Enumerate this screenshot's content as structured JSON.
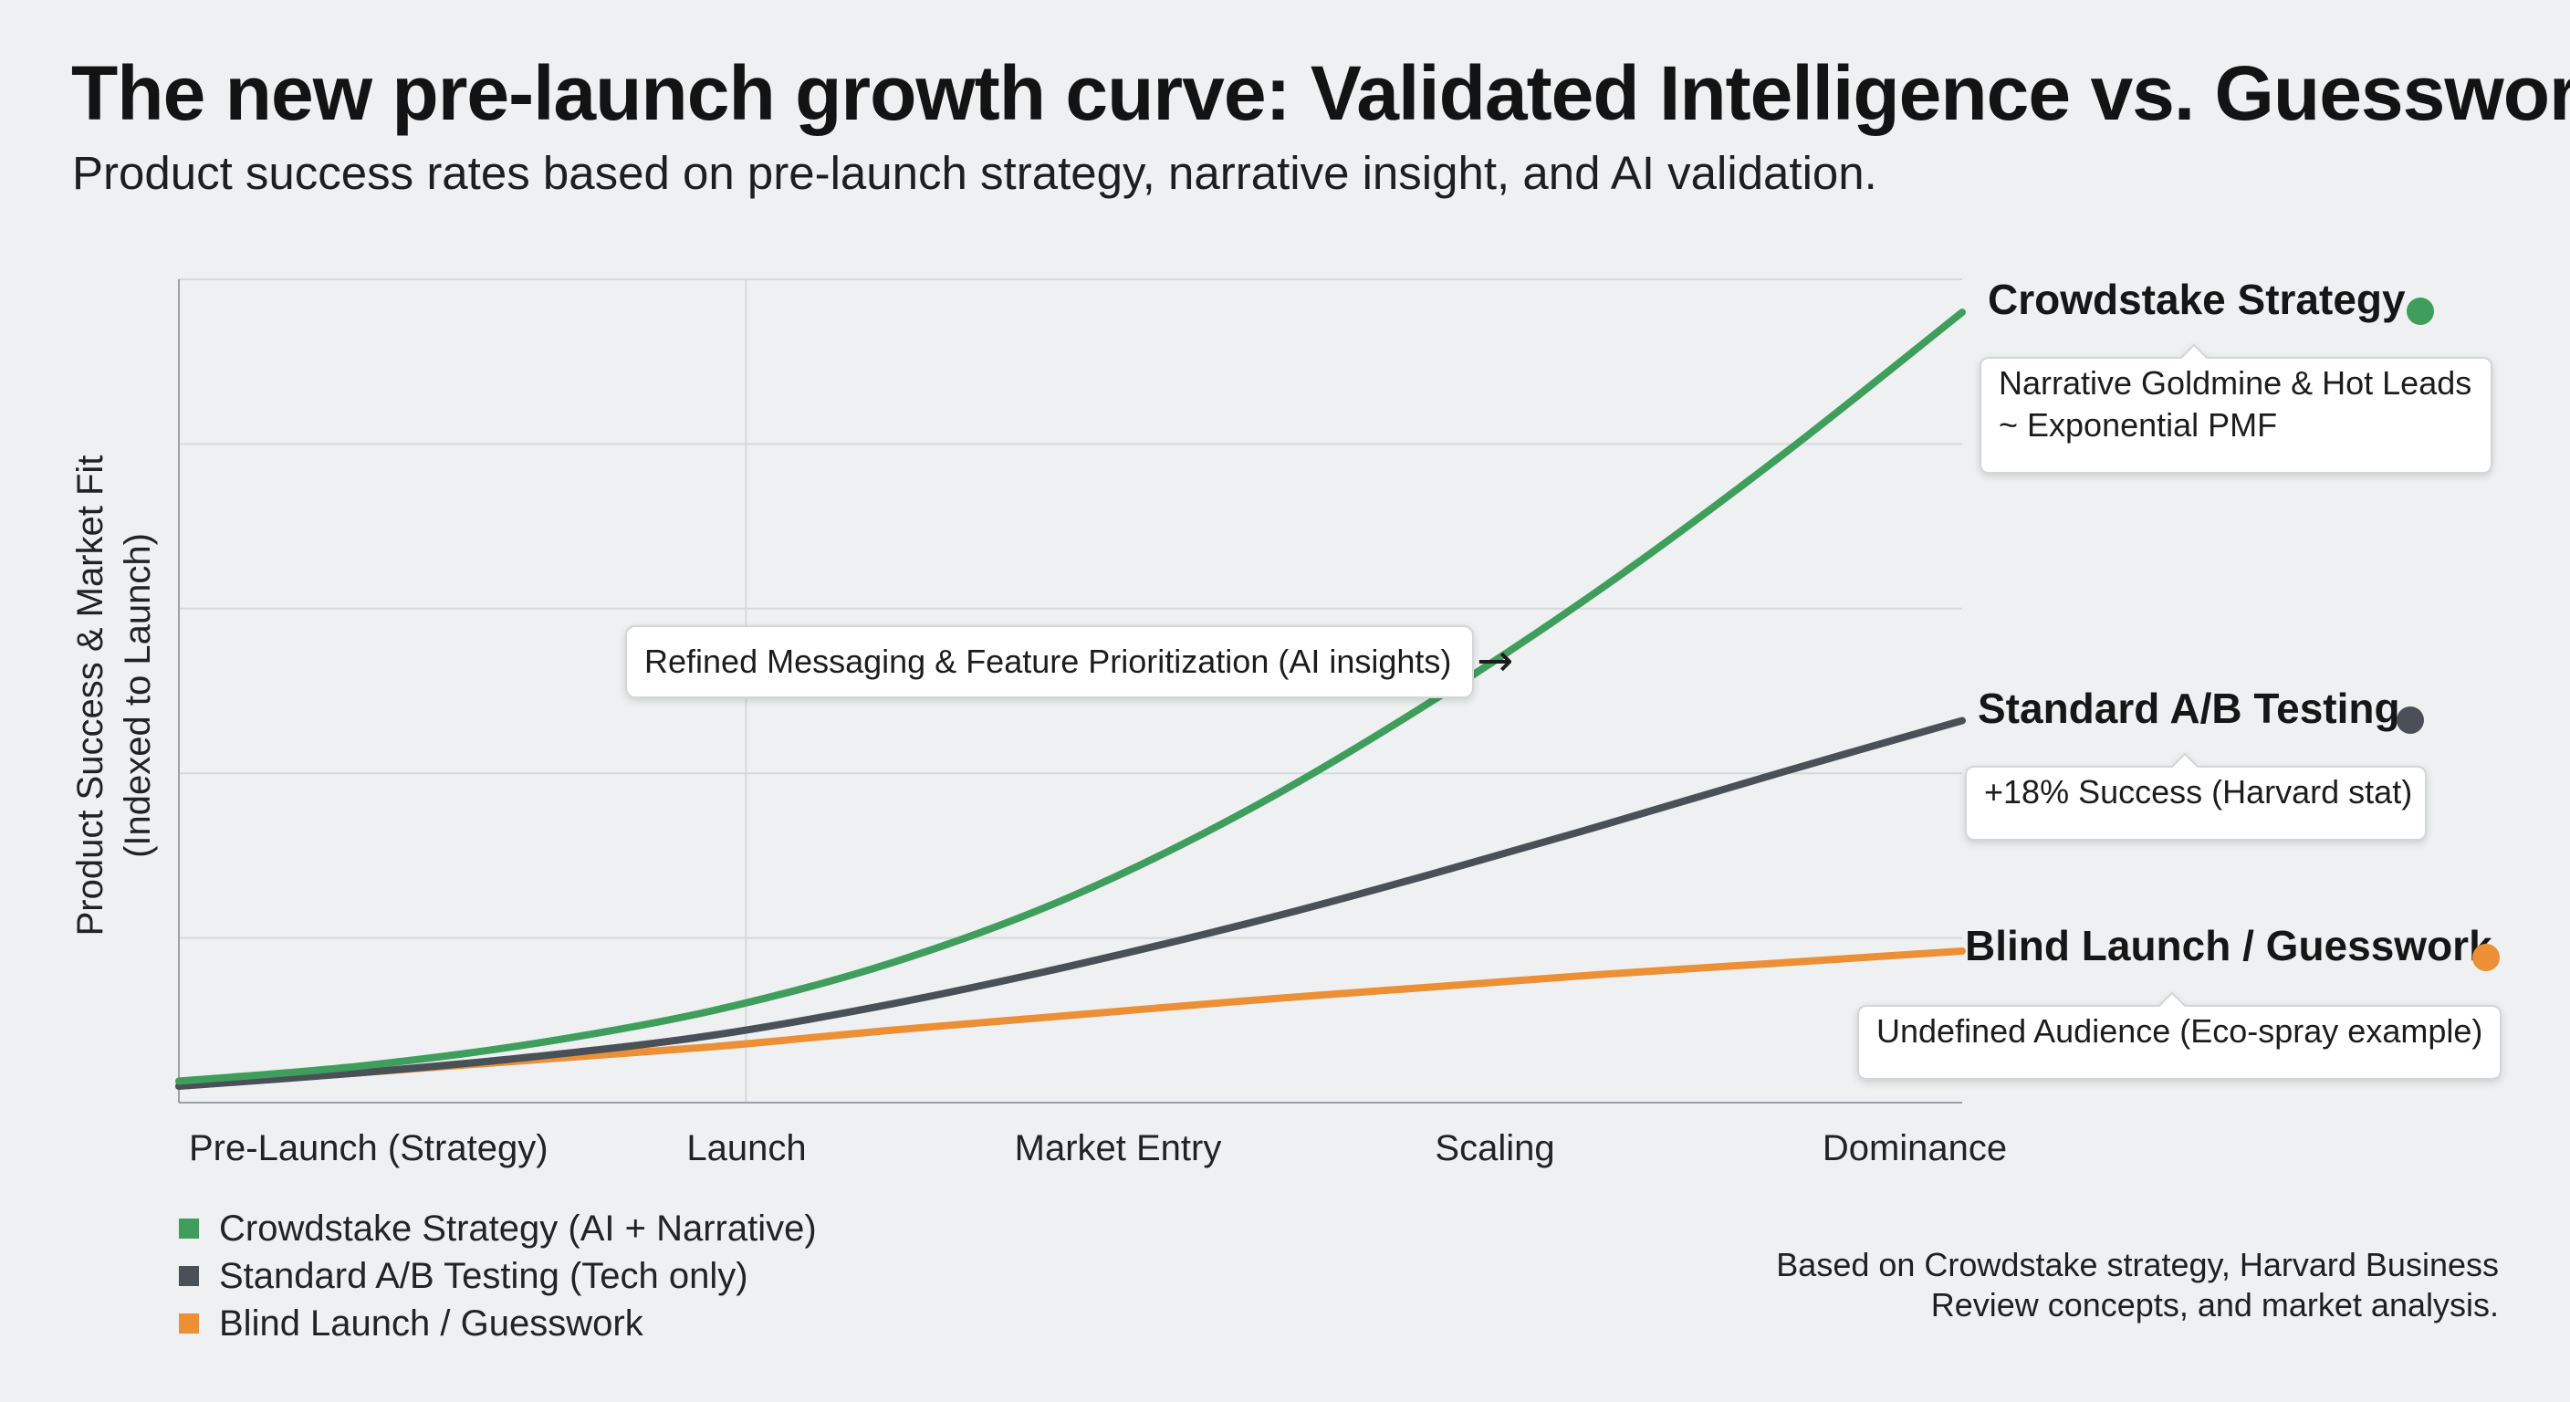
{
  "header": {
    "title": "The new pre-launch growth curve: Validated Intelligence vs. Guesswork.",
    "subtitle": "Product success rates based on pre-launch strategy, narrative insight, and AI validation."
  },
  "colors": {
    "crowdstake": "#3f9e5c",
    "standard": "#4a5058",
    "blind": "#ec8f35",
    "grid": "#d6d9dc",
    "axis": "#9aa0a6"
  },
  "chart_data": {
    "type": "line",
    "title": "The new pre-launch growth curve: Validated Intelligence vs. Guesswork.",
    "ylabel": "Product Success & Market Fit (Indexed to Launch)",
    "ylabel_lines": [
      "Product Success & Market Fit",
      "(Indexed to Launch)"
    ],
    "xlabel": "",
    "categories": [
      "Pre-Launch (Strategy)",
      "Launch",
      "Market Entry",
      "Scaling",
      "Dominance"
    ],
    "xlim": [
      0,
      1
    ],
    "ylim": [
      0,
      5
    ],
    "yticks": [
      1,
      2,
      3,
      4,
      5
    ],
    "vertical_marker_x": 0.318,
    "series": [
      {
        "name": "Crowdstake Strategy",
        "legend": "Crowdstake Strategy (AI + Narrative)",
        "color_key": "crowdstake",
        "x": [
          0,
          0.1,
          0.2,
          0.3,
          0.4,
          0.5,
          0.6,
          0.7,
          0.8,
          0.9,
          1.0
        ],
        "y": [
          0.13,
          0.22,
          0.36,
          0.56,
          0.85,
          1.25,
          1.78,
          2.42,
          3.14,
          3.94,
          4.8
        ],
        "end_label": "Crowdstake Strategy",
        "callout": [
          "Narrative Goldmine & Hot Leads",
          "~ Exponential PMF"
        ]
      },
      {
        "name": "Standard A/B Testing",
        "legend": "Standard A/B Testing (Tech only)",
        "color_key": "standard",
        "x": [
          0,
          0.1,
          0.2,
          0.3,
          0.4,
          0.5,
          0.6,
          0.7,
          0.8,
          0.9,
          1.0
        ],
        "y": [
          0.1,
          0.18,
          0.28,
          0.41,
          0.6,
          0.83,
          1.09,
          1.38,
          1.69,
          2.01,
          2.32
        ],
        "end_label": "Standard A/B Testing",
        "callout": [
          "+18% Success (Harvard stat)"
        ]
      },
      {
        "name": "Blind Launch / Guesswork",
        "legend": "Blind Launch / Guesswork",
        "color_key": "blind",
        "x": [
          0,
          0.1,
          0.2,
          0.3,
          0.4,
          0.5,
          0.6,
          0.7,
          0.8,
          0.9,
          1.0
        ],
        "y": [
          0.1,
          0.18,
          0.26,
          0.34,
          0.44,
          0.53,
          0.62,
          0.7,
          0.78,
          0.85,
          0.92
        ],
        "end_label": "Blind Launch / Guesswork",
        "callout": [
          "Undefined Audience (Eco-spray example)"
        ]
      }
    ],
    "annotations": [
      {
        "text": "Refined Messaging & Feature Prioritization (AI insights)",
        "points_to": "Crowdstake Strategy",
        "arrow": "→"
      }
    ]
  },
  "source": {
    "line1": "Based on Crowdstake strategy, Harvard Business",
    "line2": "Review concepts, and market analysis."
  }
}
